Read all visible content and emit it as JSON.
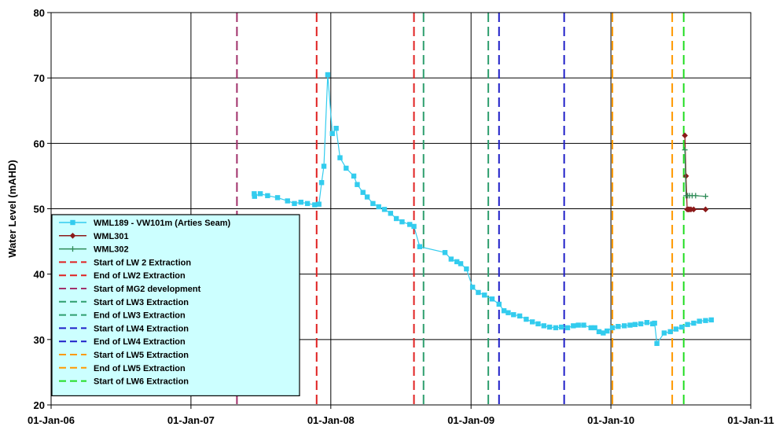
{
  "chart_data": {
    "type": "line",
    "ylabel": "Water Level (mAHD)",
    "xlabel": "",
    "ylim": [
      20,
      80
    ],
    "yticks": [
      20,
      30,
      40,
      50,
      60,
      70,
      80
    ],
    "xlim": [
      "2006-01-01",
      "2011-01-01"
    ],
    "xticks": [
      {
        "date": "2006-01-01",
        "label": "01-Jan-06"
      },
      {
        "date": "2007-01-01",
        "label": "01-Jan-07"
      },
      {
        "date": "2008-01-01",
        "label": "01-Jan-08"
      },
      {
        "date": "2009-01-01",
        "label": "01-Jan-09"
      },
      {
        "date": "2010-01-01",
        "label": "01-Jan-10"
      },
      {
        "date": "2011-01-01",
        "label": "01-Jan-11"
      }
    ],
    "grid": true,
    "legend_position": "bottom-left",
    "series": [
      {
        "name": "WML189 - VW101m (Arties Seam)",
        "color": "#33CCEE",
        "marker": "square",
        "points": [
          [
            "2007-06-15",
            52.3
          ],
          [
            "2007-06-16",
            51.9
          ],
          [
            "2007-07-01",
            52.3
          ],
          [
            "2007-07-20",
            52.0
          ],
          [
            "2007-08-15",
            51.7
          ],
          [
            "2007-09-10",
            51.2
          ],
          [
            "2007-09-28",
            50.8
          ],
          [
            "2007-10-15",
            51.0
          ],
          [
            "2007-11-01",
            50.8
          ],
          [
            "2007-11-20",
            50.6
          ],
          [
            "2007-12-01",
            50.7
          ],
          [
            "2007-12-08",
            54.0
          ],
          [
            "2007-12-14",
            56.5
          ],
          [
            "2007-12-24",
            70.5
          ],
          [
            "2008-01-05",
            61.5
          ],
          [
            "2008-01-15",
            62.3
          ],
          [
            "2008-01-25",
            57.8
          ],
          [
            "2008-02-10",
            56.2
          ],
          [
            "2008-03-01",
            55.0
          ],
          [
            "2008-03-10",
            53.7
          ],
          [
            "2008-03-25",
            52.5
          ],
          [
            "2008-04-05",
            51.8
          ],
          [
            "2008-04-20",
            50.8
          ],
          [
            "2008-05-05",
            50.3
          ],
          [
            "2008-05-20",
            49.9
          ],
          [
            "2008-06-05",
            49.3
          ],
          [
            "2008-06-20",
            48.5
          ],
          [
            "2008-07-05",
            48.0
          ],
          [
            "2008-07-25",
            47.6
          ],
          [
            "2008-08-05",
            47.3
          ],
          [
            "2008-08-20",
            44.2
          ],
          [
            "2008-10-25",
            43.3
          ],
          [
            "2008-11-10",
            42.3
          ],
          [
            "2008-11-25",
            41.9
          ],
          [
            "2008-12-05",
            41.6
          ],
          [
            "2008-12-20",
            40.8
          ],
          [
            "2009-01-05",
            38.0
          ],
          [
            "2009-01-20",
            37.2
          ],
          [
            "2009-02-05",
            36.8
          ],
          [
            "2009-02-25",
            36.2
          ],
          [
            "2009-03-15",
            35.4
          ],
          [
            "2009-03-28",
            34.4
          ],
          [
            "2009-04-08",
            34.1
          ],
          [
            "2009-04-22",
            33.8
          ],
          [
            "2009-05-08",
            33.6
          ],
          [
            "2009-05-25",
            33.1
          ],
          [
            "2009-06-10",
            32.7
          ],
          [
            "2009-06-25",
            32.4
          ],
          [
            "2009-07-10",
            32.1
          ],
          [
            "2009-07-25",
            31.9
          ],
          [
            "2009-08-10",
            31.8
          ],
          [
            "2009-08-25",
            31.9
          ],
          [
            "2009-09-10",
            31.8
          ],
          [
            "2009-09-25",
            32.1
          ],
          [
            "2009-10-08",
            32.2
          ],
          [
            "2009-10-22",
            32.2
          ],
          [
            "2009-11-10",
            31.8
          ],
          [
            "2009-11-20",
            31.8
          ],
          [
            "2009-12-01",
            31.2
          ],
          [
            "2009-12-12",
            31.0
          ],
          [
            "2009-12-22",
            31.3
          ],
          [
            "2010-01-05",
            31.8
          ],
          [
            "2010-01-20",
            32.0
          ],
          [
            "2010-02-05",
            32.1
          ],
          [
            "2010-02-20",
            32.2
          ],
          [
            "2010-03-05",
            32.3
          ],
          [
            "2010-03-20",
            32.4
          ],
          [
            "2010-04-05",
            32.6
          ],
          [
            "2010-04-20",
            32.4
          ],
          [
            "2010-04-25",
            32.5
          ],
          [
            "2010-05-01",
            29.4
          ],
          [
            "2010-05-20",
            31.0
          ],
          [
            "2010-06-05",
            31.2
          ],
          [
            "2010-06-20",
            31.6
          ],
          [
            "2010-07-05",
            31.9
          ],
          [
            "2010-07-20",
            32.3
          ],
          [
            "2010-08-05",
            32.5
          ],
          [
            "2010-08-20",
            32.8
          ],
          [
            "2010-09-05",
            32.9
          ],
          [
            "2010-09-20",
            33.0
          ]
        ]
      },
      {
        "name": "WML301",
        "color": "#8B1A1A",
        "marker": "diamond",
        "points": [
          [
            "2010-07-13",
            61.2
          ],
          [
            "2010-07-16",
            55.0
          ],
          [
            "2010-07-19",
            49.9
          ],
          [
            "2010-07-22",
            49.9
          ],
          [
            "2010-07-25",
            49.9
          ],
          [
            "2010-07-29",
            49.9
          ],
          [
            "2010-08-05",
            49.9
          ],
          [
            "2010-09-05",
            49.9
          ]
        ]
      },
      {
        "name": "WML302",
        "color": "#2E8B57",
        "marker": "plus",
        "points": [
          [
            "2010-07-13",
            59.0
          ],
          [
            "2010-07-16",
            52.0
          ],
          [
            "2010-07-20",
            52.0
          ],
          [
            "2010-07-25",
            52.0
          ],
          [
            "2010-08-01",
            52.0
          ],
          [
            "2010-08-10",
            52.0
          ],
          [
            "2010-09-05",
            51.9
          ]
        ]
      }
    ],
    "events": [
      {
        "name": "Start of LW 2 Extraction",
        "date": "2007-11-25",
        "color": "#E02020"
      },
      {
        "name": "End of LW2 Extraction",
        "date": "2008-08-05",
        "color": "#E02020"
      },
      {
        "name": "Start of MG2 development",
        "date": "2007-05-01",
        "color": "#A0306A"
      },
      {
        "name": "Start of LW3 Extraction",
        "date": "2008-08-30",
        "color": "#2E9E6E"
      },
      {
        "name": "End of LW3 Extraction",
        "date": "2009-02-15",
        "color": "#2E9E6E"
      },
      {
        "name": "Start of LW4 Extraction",
        "date": "2009-03-15",
        "color": "#1E1EC8"
      },
      {
        "name": "End of LW4 Extraction",
        "date": "2009-09-01",
        "color": "#1E1EC8"
      },
      {
        "name": "Start of LW5 Extraction",
        "date": "2010-01-05",
        "color": "#FF9900"
      },
      {
        "name": "End of LW5 Extraction",
        "date": "2010-06-10",
        "color": "#FF9900"
      },
      {
        "name": "Start of LW6 Extraction",
        "date": "2010-07-10",
        "color": "#22DD22"
      }
    ]
  }
}
